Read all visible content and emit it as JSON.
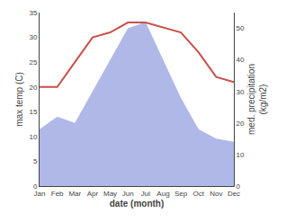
{
  "chart_data": {
    "type": "line",
    "categories": [
      "Jan",
      "Feb",
      "Mar",
      "Apr",
      "May",
      "Jun",
      "Jul",
      "Aug",
      "Sep",
      "Oct",
      "Nov",
      "Dec"
    ],
    "xlabel": "date (month)",
    "ylabel": "max temp (C)",
    "y2label": "med. precipitation\n(kg/m2)",
    "series": [
      {
        "type": "line",
        "color": "#c8504a",
        "values": [
          20,
          20,
          25,
          30,
          31,
          33,
          33,
          32,
          31,
          27,
          22,
          21
        ]
      },
      {
        "type": "area",
        "axis": "y2",
        "color": "#b0b8e8",
        "values": [
          18,
          22,
          20,
          30,
          40,
          50,
          52,
          40,
          28,
          18,
          15,
          14
        ]
      }
    ],
    "ylim": [
      0,
      35
    ],
    "yticks": [
      0,
      5,
      10,
      15,
      20,
      25,
      30,
      35
    ],
    "y2lim": [
      0,
      55
    ],
    "y2ticks": [
      0,
      10,
      20,
      30,
      40,
      50
    ],
    "grid": false
  }
}
